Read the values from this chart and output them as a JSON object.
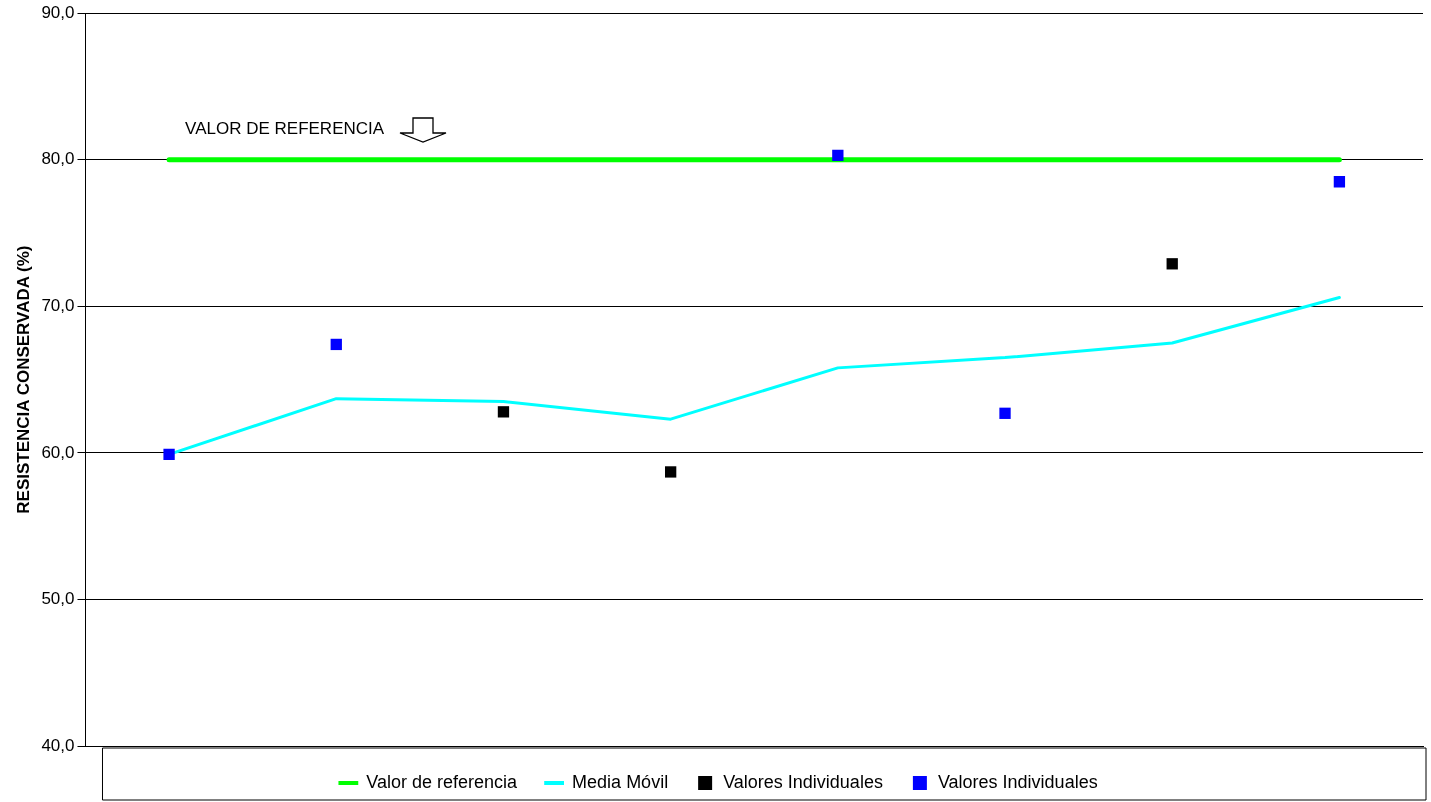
{
  "chart_data": {
    "type": "line",
    "ylabel": "RESISTENCIA CONSERVADA (%)",
    "categories": [
      null,
      null,
      null,
      null,
      null,
      null,
      null,
      null
    ],
    "series": [
      {
        "name": "Valor de referencia",
        "color": "#00ff00",
        "marker": "none",
        "values": [
          80,
          80,
          80,
          80,
          80,
          80,
          80,
          80
        ]
      },
      {
        "name": "Media Móvil",
        "color": "#00ffff",
        "marker": "none",
        "values": [
          59.9,
          63.7,
          63.5,
          62.3,
          65.8,
          66.5,
          67.5,
          70.6
        ]
      },
      {
        "name": "Valores Individuales",
        "type": "scatter",
        "color": "#000000",
        "marker": "square",
        "values": [
          null,
          null,
          62.8,
          58.7,
          null,
          null,
          72.9,
          null
        ]
      },
      {
        "name": "Valores Individuales",
        "type": "scatter",
        "color": "#0000ff",
        "marker": "square",
        "values": [
          59.9,
          67.4,
          null,
          null,
          80.3,
          62.7,
          null,
          78.5
        ]
      }
    ],
    "ylim": [
      40,
      90
    ],
    "yticks": [
      {
        "value": 40,
        "label": "40,0"
      },
      {
        "value": 50,
        "label": "50,0"
      },
      {
        "value": 60,
        "label": "60,0"
      },
      {
        "value": 70,
        "label": "70,0"
      },
      {
        "value": 80,
        "label": "80,0"
      },
      {
        "value": 90,
        "label": "90,0"
      }
    ],
    "grid": "y",
    "tick_labels": "y",
    "legend": "bottom",
    "annotations": [
      "VALOR DE REFERENCIA"
    ]
  }
}
